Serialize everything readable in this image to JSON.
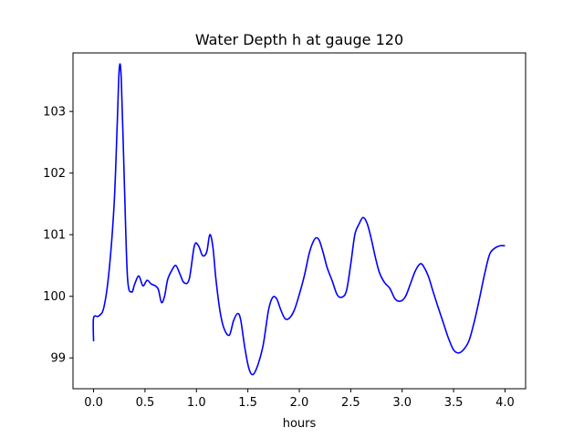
{
  "chart_data": {
    "type": "line",
    "title": "Water Depth h at gauge 120",
    "xlabel": "hours",
    "ylabel": "",
    "xlim": [
      -0.2,
      4.2
    ],
    "ylim": [
      98.5,
      103.95
    ],
    "xticks": [
      {
        "value": 0.0,
        "label": "0.0"
      },
      {
        "value": 0.5,
        "label": "0.5"
      },
      {
        "value": 1.0,
        "label": "1.0"
      },
      {
        "value": 1.5,
        "label": "1.5"
      },
      {
        "value": 2.0,
        "label": "2.0"
      },
      {
        "value": 2.5,
        "label": "2.5"
      },
      {
        "value": 3.0,
        "label": "3.0"
      },
      {
        "value": 3.5,
        "label": "3.5"
      },
      {
        "value": 4.0,
        "label": "4.0"
      }
    ],
    "yticks": [
      {
        "value": 99,
        "label": "99"
      },
      {
        "value": 100,
        "label": "100"
      },
      {
        "value": 101,
        "label": "101"
      },
      {
        "value": 102,
        "label": "102"
      },
      {
        "value": 103,
        "label": "103"
      }
    ],
    "grid": false,
    "series": [
      {
        "name": "",
        "color": "#0000ff",
        "x": [
          0.0,
          0.0,
          0.05,
          0.1,
          0.15,
          0.2,
          0.23,
          0.25,
          0.27,
          0.3,
          0.33,
          0.37,
          0.4,
          0.44,
          0.48,
          0.52,
          0.56,
          0.6,
          0.63,
          0.66,
          0.69,
          0.72,
          0.76,
          0.8,
          0.84,
          0.88,
          0.93,
          0.98,
          1.02,
          1.06,
          1.1,
          1.13,
          1.16,
          1.19,
          1.23,
          1.27,
          1.32,
          1.36,
          1.4,
          1.43,
          1.47,
          1.51,
          1.55,
          1.6,
          1.65,
          1.7,
          1.74,
          1.78,
          1.82,
          1.86,
          1.9,
          1.95,
          2.0,
          2.05,
          2.1,
          2.15,
          2.19,
          2.23,
          2.27,
          2.32,
          2.37,
          2.42,
          2.46,
          2.5,
          2.54,
          2.58,
          2.62,
          2.66,
          2.7,
          2.74,
          2.78,
          2.83,
          2.88,
          2.93,
          2.98,
          3.03,
          3.08,
          3.13,
          3.18,
          3.22,
          3.26,
          3.3,
          3.35,
          3.4,
          3.45,
          3.5,
          3.55,
          3.6,
          3.65,
          3.7,
          3.75,
          3.8,
          3.85,
          3.9,
          3.95,
          4.0
        ],
        "y": [
          99.27,
          99.65,
          99.68,
          99.82,
          100.4,
          101.5,
          102.8,
          103.7,
          103.5,
          101.8,
          100.3,
          100.07,
          100.2,
          100.33,
          100.17,
          100.26,
          100.2,
          100.17,
          100.11,
          99.9,
          100.0,
          100.27,
          100.42,
          100.5,
          100.36,
          100.22,
          100.28,
          100.82,
          100.82,
          100.66,
          100.72,
          101.0,
          100.8,
          100.27,
          99.75,
          99.47,
          99.37,
          99.6,
          99.72,
          99.62,
          99.17,
          98.83,
          98.73,
          98.9,
          99.22,
          99.77,
          99.98,
          99.96,
          99.78,
          99.64,
          99.64,
          99.77,
          100.03,
          100.34,
          100.72,
          100.93,
          100.92,
          100.72,
          100.47,
          100.25,
          100.02,
          99.99,
          100.1,
          100.52,
          101.0,
          101.17,
          101.28,
          101.18,
          100.93,
          100.63,
          100.38,
          100.22,
          100.13,
          99.96,
          99.92,
          99.99,
          100.2,
          100.42,
          100.53,
          100.45,
          100.3,
          100.08,
          99.82,
          99.57,
          99.32,
          99.13,
          99.08,
          99.14,
          99.28,
          99.58,
          99.95,
          100.35,
          100.68,
          100.78,
          100.82,
          100.82
        ]
      }
    ]
  }
}
